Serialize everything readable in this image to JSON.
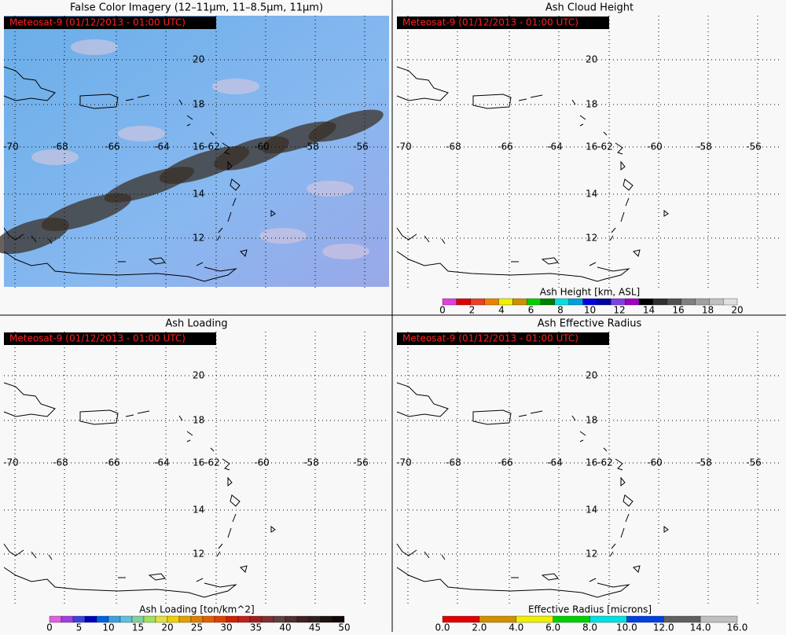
{
  "panels": [
    {
      "title": "False Color Imagery (12–11μm, 11–8.5μm, 11μm)",
      "timestamp": "Meteosat-9  (01/12/2013 - 01:00 UTC)",
      "lat_labels": [
        "20",
        "18",
        "16",
        "14",
        "12"
      ],
      "lon_labels": [
        "-70",
        "-68",
        "-66",
        "-64",
        "-62",
        "-60",
        "-58",
        "-56"
      ]
    },
    {
      "title": "Ash Cloud Height",
      "timestamp": "Meteosat-9  (01/12/2013 - 01:00 UTC)",
      "lat_labels": [
        "20",
        "18",
        "16",
        "14",
        "12"
      ],
      "lon_labels": [
        "-70",
        "-68",
        "-66",
        "-64",
        "-62",
        "-60",
        "-58",
        "-56"
      ],
      "colorbar": {
        "label": "Ash Height [km, ASL]",
        "ticks": [
          "0",
          "2",
          "4",
          "6",
          "8",
          "10",
          "12",
          "14",
          "16",
          "18",
          "20"
        ],
        "colors": [
          "#e040e0",
          "#e00000",
          "#f04020",
          "#f08000",
          "#f0f000",
          "#d09000",
          "#00d000",
          "#008000",
          "#00e0e0",
          "#00a0e0",
          "#0000e0",
          "#0000a0",
          "#8040e0",
          "#a000c0",
          "#000000",
          "#303030",
          "#505050",
          "#808080",
          "#a0a0a0",
          "#c0c0c0",
          "#e0e0e0"
        ]
      }
    },
    {
      "title": "Ash Loading",
      "timestamp": "Meteosat-9  (01/12/2013 - 01:00 UTC)",
      "lat_labels": [
        "20",
        "18",
        "16",
        "14",
        "12"
      ],
      "lon_labels": [
        "-70",
        "-68",
        "-66",
        "-64",
        "-62",
        "-60",
        "-58",
        "-56"
      ],
      "colorbar": {
        "label": "Ash Loading [ton/km^2]",
        "ticks": [
          "0",
          "5",
          "10",
          "15",
          "20",
          "25",
          "30",
          "35",
          "40",
          "45",
          "50"
        ],
        "colors": [
          "#e060e0",
          "#a040e0",
          "#4040e0",
          "#0000c0",
          "#0060e0",
          "#40a0e0",
          "#60c0e0",
          "#80d0a0",
          "#a0e060",
          "#e0e040",
          "#f0d000",
          "#e0a000",
          "#e08000",
          "#e06000",
          "#e04000",
          "#d02000",
          "#c02020",
          "#a02020",
          "#803030",
          "#604040",
          "#503030",
          "#402020",
          "#302020",
          "#201010",
          "#100808"
        ]
      }
    },
    {
      "title": "Ash Effective Radius",
      "timestamp": "Meteosat-9  (01/12/2013 - 01:00 UTC)",
      "lat_labels": [
        "20",
        "18",
        "16",
        "14",
        "12"
      ],
      "lon_labels": [
        "-70",
        "-68",
        "-66",
        "-64",
        "-62",
        "-60",
        "-58",
        "-56"
      ],
      "colorbar": {
        "label": "Effective Radius [microns]",
        "ticks": [
          "0.0",
          "2.0",
          "4.0",
          "6.0",
          "8.0",
          "10.0",
          "12.0",
          "14.0",
          "16.0"
        ],
        "colors": [
          "#e00000",
          "#d09000",
          "#f0f000",
          "#00d000",
          "#00e0e0",
          "#0040e0",
          "#606060",
          "#c0c0c0"
        ]
      }
    }
  ]
}
